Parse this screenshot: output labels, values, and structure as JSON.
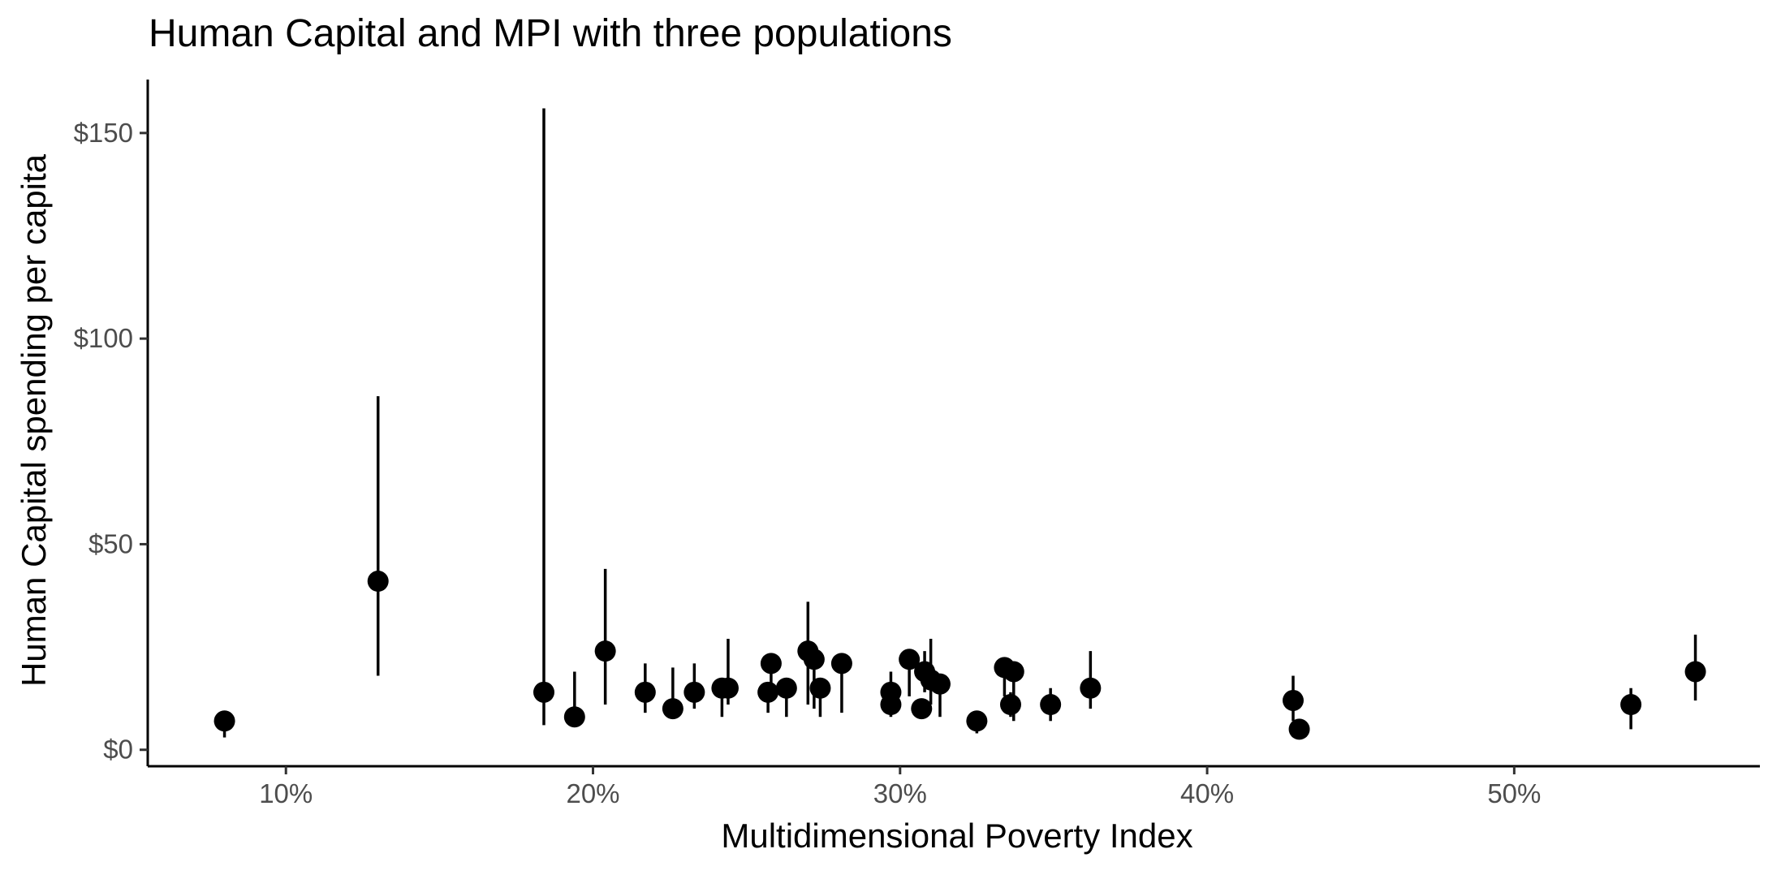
{
  "chart_data": {
    "type": "scatter",
    "title": "Human Capital and MPI with three populations",
    "xlabel": "Multidimensional Poverty Index",
    "ylabel": "Human Capital spending per capita",
    "xlim": [
      0.055,
      0.58
    ],
    "ylim": [
      -4,
      163
    ],
    "x_ticks": [
      0.1,
      0.2,
      0.3,
      0.4,
      0.5
    ],
    "x_tick_labels": [
      "10%",
      "20%",
      "30%",
      "40%",
      "50%"
    ],
    "y_ticks": [
      0,
      50,
      100,
      150
    ],
    "y_tick_labels": [
      "$0",
      "$50",
      "$100",
      "$150"
    ],
    "grid": false,
    "points": [
      {
        "x": 0.08,
        "y": 7,
        "low": 3,
        "high": 9
      },
      {
        "x": 0.13,
        "y": 41,
        "low": 18,
        "high": 86
      },
      {
        "x": 0.184,
        "y": 14,
        "low": 6,
        "high": 156
      },
      {
        "x": 0.194,
        "y": 8,
        "low": 6,
        "high": 19
      },
      {
        "x": 0.204,
        "y": 24,
        "low": 11,
        "high": 44
      },
      {
        "x": 0.217,
        "y": 14,
        "low": 9,
        "high": 21
      },
      {
        "x": 0.226,
        "y": 10,
        "low": 8,
        "high": 20
      },
      {
        "x": 0.233,
        "y": 14,
        "low": 10,
        "high": 21
      },
      {
        "x": 0.242,
        "y": 15,
        "low": 8,
        "high": 16
      },
      {
        "x": 0.244,
        "y": 15,
        "low": 11,
        "high": 27
      },
      {
        "x": 0.257,
        "y": 14,
        "low": 9,
        "high": 16
      },
      {
        "x": 0.258,
        "y": 21,
        "low": 16,
        "high": 23
      },
      {
        "x": 0.263,
        "y": 15,
        "low": 8,
        "high": 17
      },
      {
        "x": 0.27,
        "y": 24,
        "low": 11,
        "high": 36
      },
      {
        "x": 0.272,
        "y": 22,
        "low": 10,
        "high": 25
      },
      {
        "x": 0.274,
        "y": 15,
        "low": 8,
        "high": 17
      },
      {
        "x": 0.281,
        "y": 21,
        "low": 9,
        "high": 22
      },
      {
        "x": 0.297,
        "y": 11,
        "low": 8,
        "high": 14
      },
      {
        "x": 0.297,
        "y": 14,
        "low": 11,
        "high": 19
      },
      {
        "x": 0.303,
        "y": 22,
        "low": 13,
        "high": 23
      },
      {
        "x": 0.307,
        "y": 10,
        "low": 8,
        "high": 12
      },
      {
        "x": 0.308,
        "y": 19,
        "low": 14,
        "high": 24
      },
      {
        "x": 0.31,
        "y": 17,
        "low": 11,
        "high": 27
      },
      {
        "x": 0.313,
        "y": 16,
        "low": 8,
        "high": 17
      },
      {
        "x": 0.325,
        "y": 7,
        "low": 4,
        "high": 8
      },
      {
        "x": 0.334,
        "y": 20,
        "low": 13,
        "high": 22
      },
      {
        "x": 0.336,
        "y": 11,
        "low": 8,
        "high": 14
      },
      {
        "x": 0.337,
        "y": 19,
        "low": 7,
        "high": 21
      },
      {
        "x": 0.349,
        "y": 11,
        "low": 7,
        "high": 15
      },
      {
        "x": 0.362,
        "y": 15,
        "low": 10,
        "high": 24
      },
      {
        "x": 0.428,
        "y": 12,
        "low": 7,
        "high": 18
      },
      {
        "x": 0.43,
        "y": 5,
        "low": 4,
        "high": 6
      },
      {
        "x": 0.538,
        "y": 11,
        "low": 5,
        "high": 15
      },
      {
        "x": 0.559,
        "y": 19,
        "low": 12,
        "high": 28
      }
    ]
  }
}
